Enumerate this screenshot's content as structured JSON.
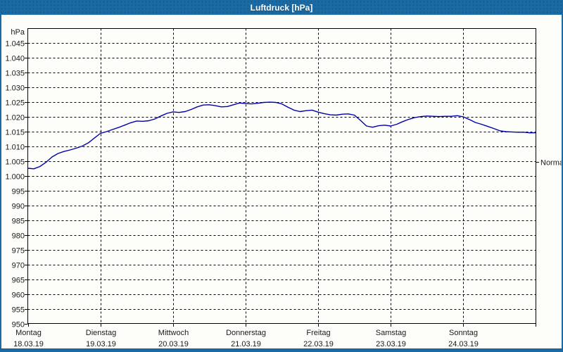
{
  "window": {
    "title": "Luftdruck [hPa]",
    "titlebar_color": "#1b6aa3",
    "background_color": "#fdfdfa"
  },
  "chart_data": {
    "type": "line",
    "title": "Luftdruck [hPa]",
    "unit_label": "hPa",
    "grid": "dashed",
    "line_color": "#0000b0",
    "ylim": [
      950,
      1045
    ],
    "xlim_hours": [
      0,
      168
    ],
    "y_ticks": [
      {
        "value": 1045,
        "label": "1.045"
      },
      {
        "value": 1040,
        "label": "1.040"
      },
      {
        "value": 1035,
        "label": "1.035"
      },
      {
        "value": 1030,
        "label": "1.030"
      },
      {
        "value": 1025,
        "label": "1.025"
      },
      {
        "value": 1020,
        "label": "1.020"
      },
      {
        "value": 1015,
        "label": "1.015"
      },
      {
        "value": 1010,
        "label": "1.010"
      },
      {
        "value": 1005,
        "label": "1.005"
      },
      {
        "value": 1000,
        "label": "1.000"
      },
      {
        "value": 995,
        "label": "995"
      },
      {
        "value": 990,
        "label": "990"
      },
      {
        "value": 985,
        "label": "985"
      },
      {
        "value": 980,
        "label": "980"
      },
      {
        "value": 975,
        "label": "975"
      },
      {
        "value": 970,
        "label": "970"
      },
      {
        "value": 965,
        "label": "965"
      },
      {
        "value": 960,
        "label": "960"
      },
      {
        "value": 955,
        "label": "955"
      },
      {
        "value": 950,
        "label": "950"
      }
    ],
    "x_days": [
      {
        "weekday": "Montag",
        "date": "18.03.19"
      },
      {
        "weekday": "Dienstag",
        "date": "19.03.19"
      },
      {
        "weekday": "Mittwoch",
        "date": "20.03.19"
      },
      {
        "weekday": "Donnerstag",
        "date": "21.03.19"
      },
      {
        "weekday": "Freitag",
        "date": "22.03.19"
      },
      {
        "weekday": "Samstag",
        "date": "23.03.19"
      },
      {
        "weekday": "Sonntag",
        "date": "24.03.19"
      }
    ],
    "annotations": [
      {
        "label": "Normal",
        "value_hPa": 1004.6,
        "side": "right"
      }
    ],
    "series": [
      {
        "name": "Luftdruck",
        "unit": "hPa",
        "points_t_hours_hPa": [
          [
            0,
            1002.6
          ],
          [
            2,
            1002.4
          ],
          [
            4,
            1003.2
          ],
          [
            6,
            1004.6
          ],
          [
            8,
            1006.4
          ],
          [
            10,
            1007.6
          ],
          [
            12,
            1008.3
          ],
          [
            14,
            1008.8
          ],
          [
            16,
            1009.4
          ],
          [
            18,
            1010.1
          ],
          [
            20,
            1011.2
          ],
          [
            22,
            1012.8
          ],
          [
            24,
            1014.4
          ],
          [
            26,
            1015.0
          ],
          [
            28,
            1015.7
          ],
          [
            30,
            1016.4
          ],
          [
            32,
            1017.2
          ],
          [
            34,
            1018.0
          ],
          [
            36,
            1018.6
          ],
          [
            38,
            1018.5
          ],
          [
            40,
            1018.7
          ],
          [
            42,
            1019.3
          ],
          [
            44,
            1020.3
          ],
          [
            46,
            1021.2
          ],
          [
            48,
            1021.7
          ],
          [
            50,
            1021.5
          ],
          [
            52,
            1021.8
          ],
          [
            54,
            1022.5
          ],
          [
            56,
            1023.4
          ],
          [
            58,
            1024.0
          ],
          [
            60,
            1024.1
          ],
          [
            62,
            1023.8
          ],
          [
            64,
            1023.4
          ],
          [
            66,
            1023.5
          ],
          [
            68,
            1024.1
          ],
          [
            70,
            1024.7
          ],
          [
            72,
            1024.5
          ],
          [
            74,
            1024.4
          ],
          [
            76,
            1024.6
          ],
          [
            78,
            1024.9
          ],
          [
            80,
            1025.0
          ],
          [
            82,
            1024.9
          ],
          [
            84,
            1024.4
          ],
          [
            86,
            1023.3
          ],
          [
            88,
            1022.3
          ],
          [
            90,
            1021.8
          ],
          [
            92,
            1022.1
          ],
          [
            94,
            1022.3
          ],
          [
            96,
            1021.6
          ],
          [
            98,
            1021.1
          ],
          [
            100,
            1020.7
          ],
          [
            102,
            1020.6
          ],
          [
            104,
            1020.9
          ],
          [
            106,
            1021.0
          ],
          [
            108,
            1020.6
          ],
          [
            110,
            1018.8
          ],
          [
            112,
            1016.9
          ],
          [
            114,
            1016.5
          ],
          [
            116,
            1017.0
          ],
          [
            118,
            1017.2
          ],
          [
            120,
            1016.9
          ],
          [
            122,
            1017.5
          ],
          [
            124,
            1018.4
          ],
          [
            126,
            1019.2
          ],
          [
            128,
            1019.8
          ],
          [
            130,
            1020.1
          ],
          [
            132,
            1020.3
          ],
          [
            134,
            1020.2
          ],
          [
            136,
            1020.1
          ],
          [
            138,
            1020.2
          ],
          [
            140,
            1020.2
          ],
          [
            142,
            1020.4
          ],
          [
            144,
            1020.0
          ],
          [
            146,
            1019.1
          ],
          [
            148,
            1018.1
          ],
          [
            150,
            1017.5
          ],
          [
            152,
            1016.8
          ],
          [
            154,
            1016.1
          ],
          [
            156,
            1015.3
          ],
          [
            158,
            1015.0
          ],
          [
            160,
            1014.9
          ],
          [
            162,
            1014.8
          ],
          [
            164,
            1014.8
          ],
          [
            166,
            1014.6
          ],
          [
            168,
            1014.6
          ]
        ]
      }
    ]
  }
}
